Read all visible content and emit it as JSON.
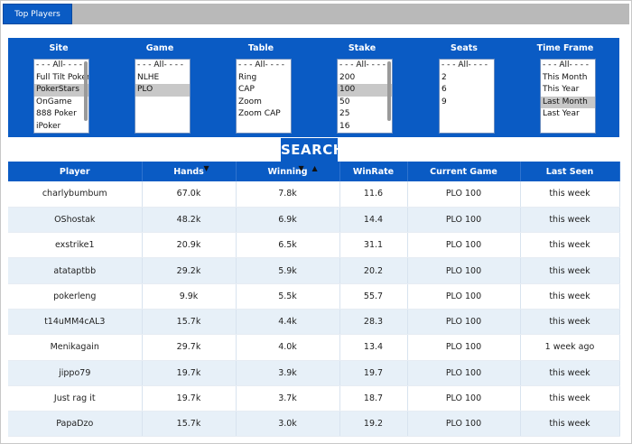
{
  "tab": {
    "label": "Top Players"
  },
  "filters": [
    {
      "title": "Site",
      "options": [
        "- - - All- - - -",
        "Full Tilt Poker",
        "PokerStars",
        "OnGame",
        "888 Poker",
        "iPoker"
      ],
      "selected": 2,
      "scrollbar": true
    },
    {
      "title": "Game",
      "options": [
        "- - - All- - - -",
        "NLHE",
        "PLO"
      ],
      "selected": 2,
      "scrollbar": false
    },
    {
      "title": "Table",
      "options": [
        "- - - All- - - -",
        "Ring",
        "CAP",
        "Zoom",
        "Zoom CAP"
      ],
      "selected": null,
      "scrollbar": false
    },
    {
      "title": "Stake",
      "options": [
        "- - - All- - - -",
        "200",
        "100",
        "50",
        "25",
        "16"
      ],
      "selected": 2,
      "scrollbar": true
    },
    {
      "title": "Seats",
      "options": [
        "- - - All- - - -",
        "2",
        "6",
        "9"
      ],
      "selected": null,
      "scrollbar": false
    },
    {
      "title": "Time Frame",
      "options": [
        "- - - All- - - -",
        "This Month",
        "This Year",
        "Last Month",
        "Last Year"
      ],
      "selected": 3,
      "scrollbar": false
    }
  ],
  "search": {
    "label": "SEARCH"
  },
  "table": {
    "headers": [
      "Player",
      "Hands",
      "Winning",
      "WinRate",
      "Current Game",
      "Last Seen"
    ],
    "sort_arrows": {
      "down": "▼",
      "up": "▲"
    },
    "rows": [
      [
        "charlybumbum",
        "67.0k",
        "7.8k",
        "11.6",
        "PLO 100",
        "this week"
      ],
      [
        "OShostak",
        "48.2k",
        "6.9k",
        "14.4",
        "PLO 100",
        "this week"
      ],
      [
        "exstrike1",
        "20.9k",
        "6.5k",
        "31.1",
        "PLO 100",
        "this week"
      ],
      [
        "atataptbb",
        "29.2k",
        "5.9k",
        "20.2",
        "PLO 100",
        "this week"
      ],
      [
        "pokerleng",
        "9.9k",
        "5.5k",
        "55.7",
        "PLO 100",
        "this week"
      ],
      [
        "t14uMM4cAL3",
        "15.7k",
        "4.4k",
        "28.3",
        "PLO 100",
        "this week"
      ],
      [
        "Menikagain",
        "29.7k",
        "4.0k",
        "13.4",
        "PLO 100",
        "1 week ago"
      ],
      [
        "jippo79",
        "19.7k",
        "3.9k",
        "19.7",
        "PLO 100",
        "this week"
      ],
      [
        "Just rag it",
        "19.7k",
        "3.7k",
        "18.7",
        "PLO 100",
        "this week"
      ],
      [
        "PapaDzo",
        "15.7k",
        "3.0k",
        "19.2",
        "PLO 100",
        "this week"
      ]
    ]
  },
  "colors": {
    "accent": "#0a5bc4",
    "stripe": "#e7f0f8",
    "topbar": "#b9b9b9",
    "selected": "#c8c8c8"
  }
}
